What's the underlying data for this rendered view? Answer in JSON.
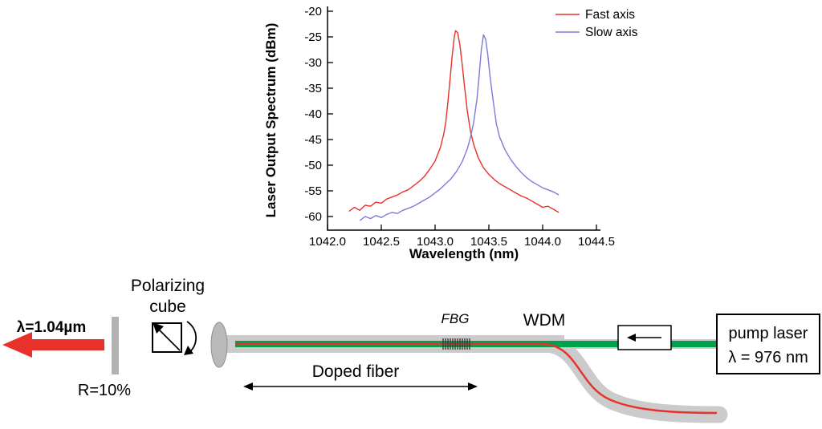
{
  "chart_data": {
    "type": "line",
    "title": "",
    "xlabel": "Wavelength (nm)",
    "ylabel": "Laser Output Spectrum (dBm)",
    "xlim": [
      1042.0,
      1044.5
    ],
    "ylim": [
      -60,
      -20
    ],
    "grid": false,
    "legend_position": "top-right",
    "xticks": [
      1042.0,
      1042.5,
      1043.0,
      1043.5,
      1044.0,
      1044.5
    ],
    "xtick_labels": [
      "1042.0",
      "1042.5",
      "1043.0",
      "1043.5",
      "1044.0",
      "1044.5"
    ],
    "yticks": [
      -20,
      -25,
      -30,
      -35,
      -40,
      -45,
      -50,
      -55,
      -60
    ],
    "series": [
      {
        "name": "Fast axis",
        "color": "#e8312a",
        "peak_nm": 1043.19,
        "peak_dbm": -23.8,
        "points": [
          [
            1042.2,
            -59.0
          ],
          [
            1042.25,
            -58.2
          ],
          [
            1042.3,
            -58.8
          ],
          [
            1042.35,
            -57.8
          ],
          [
            1042.4,
            -58.0
          ],
          [
            1042.45,
            -57.2
          ],
          [
            1042.5,
            -57.4
          ],
          [
            1042.55,
            -56.6
          ],
          [
            1042.6,
            -56.2
          ],
          [
            1042.65,
            -55.8
          ],
          [
            1042.7,
            -55.2
          ],
          [
            1042.75,
            -54.8
          ],
          [
            1042.8,
            -54.0
          ],
          [
            1042.85,
            -53.2
          ],
          [
            1042.9,
            -52.2
          ],
          [
            1042.95,
            -50.8
          ],
          [
            1043.0,
            -49.2
          ],
          [
            1043.05,
            -46.5
          ],
          [
            1043.08,
            -44.0
          ],
          [
            1043.1,
            -41.5
          ],
          [
            1043.12,
            -37.5
          ],
          [
            1043.14,
            -33.0
          ],
          [
            1043.16,
            -28.5
          ],
          [
            1043.18,
            -24.8
          ],
          [
            1043.19,
            -23.8
          ],
          [
            1043.21,
            -24.2
          ],
          [
            1043.23,
            -26.5
          ],
          [
            1043.25,
            -30.0
          ],
          [
            1043.27,
            -34.0
          ],
          [
            1043.3,
            -39.5
          ],
          [
            1043.33,
            -43.5
          ],
          [
            1043.36,
            -46.0
          ],
          [
            1043.4,
            -48.5
          ],
          [
            1043.45,
            -50.5
          ],
          [
            1043.5,
            -51.8
          ],
          [
            1043.55,
            -52.8
          ],
          [
            1043.6,
            -53.6
          ],
          [
            1043.65,
            -54.2
          ],
          [
            1043.7,
            -54.8
          ],
          [
            1043.75,
            -55.4
          ],
          [
            1043.8,
            -56.0
          ],
          [
            1043.85,
            -56.4
          ],
          [
            1043.9,
            -57.0
          ],
          [
            1043.95,
            -57.6
          ],
          [
            1044.0,
            -58.2
          ],
          [
            1044.05,
            -58.0
          ],
          [
            1044.1,
            -58.6
          ],
          [
            1044.15,
            -59.2
          ]
        ]
      },
      {
        "name": "Slow axis",
        "color": "#7b7bd8",
        "peak_nm": 1043.45,
        "peak_dbm": -24.6,
        "points": [
          [
            1042.3,
            -60.8
          ],
          [
            1042.35,
            -60.0
          ],
          [
            1042.4,
            -60.4
          ],
          [
            1042.45,
            -59.8
          ],
          [
            1042.5,
            -60.2
          ],
          [
            1042.55,
            -59.6
          ],
          [
            1042.6,
            -59.2
          ],
          [
            1042.65,
            -59.4
          ],
          [
            1042.7,
            -58.8
          ],
          [
            1042.75,
            -58.4
          ],
          [
            1042.8,
            -58.0
          ],
          [
            1042.85,
            -57.4
          ],
          [
            1042.9,
            -56.8
          ],
          [
            1042.95,
            -56.2
          ],
          [
            1043.0,
            -55.4
          ],
          [
            1043.05,
            -54.6
          ],
          [
            1043.1,
            -53.6
          ],
          [
            1043.15,
            -52.6
          ],
          [
            1043.2,
            -51.2
          ],
          [
            1043.25,
            -49.4
          ],
          [
            1043.3,
            -46.8
          ],
          [
            1043.33,
            -44.5
          ],
          [
            1043.36,
            -41.5
          ],
          [
            1043.39,
            -37.0
          ],
          [
            1043.41,
            -32.5
          ],
          [
            1043.43,
            -27.5
          ],
          [
            1043.45,
            -24.6
          ],
          [
            1043.47,
            -25.5
          ],
          [
            1043.49,
            -28.5
          ],
          [
            1043.51,
            -32.5
          ],
          [
            1043.54,
            -37.5
          ],
          [
            1043.57,
            -42.0
          ],
          [
            1043.6,
            -44.5
          ],
          [
            1043.65,
            -47.0
          ],
          [
            1043.7,
            -48.8
          ],
          [
            1043.75,
            -50.2
          ],
          [
            1043.8,
            -51.4
          ],
          [
            1043.85,
            -52.4
          ],
          [
            1043.9,
            -53.2
          ],
          [
            1043.95,
            -53.8
          ],
          [
            1044.0,
            -54.4
          ],
          [
            1044.05,
            -54.8
          ],
          [
            1044.1,
            -55.2
          ],
          [
            1044.15,
            -55.8
          ]
        ]
      }
    ]
  },
  "diagram": {
    "output_wavelength_label": "λ=1.04µm",
    "mirror_label": "R=10%",
    "polarizing_cube_line1": "Polarizing",
    "polarizing_cube_line2": "cube",
    "doped_fiber_label": "Doped fiber",
    "fbg_label": "FBG",
    "wdm_label": "WDM",
    "pump_laser_line1": "pump laser",
    "pump_laser_line2": "λ = 976 nm",
    "colors": {
      "signal_red": "#e8312a",
      "pump_green": "#00a14b",
      "fiber_gray": "#cbcbcb",
      "mirror_gray": "#b3b3b3"
    }
  }
}
